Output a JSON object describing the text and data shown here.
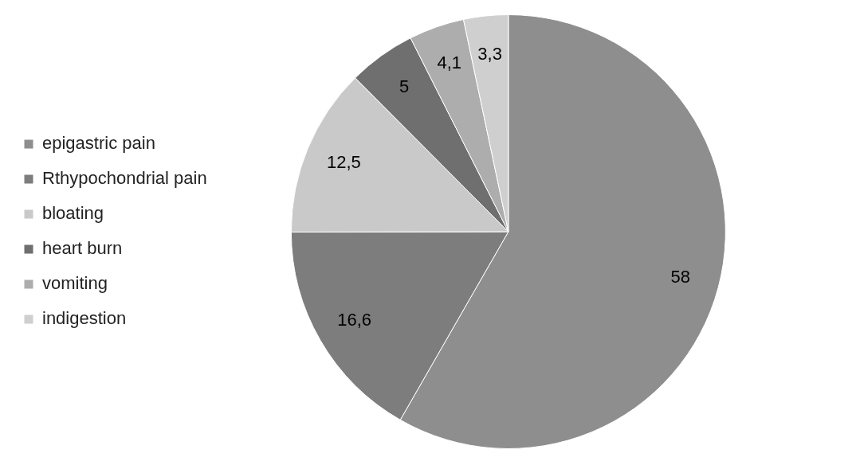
{
  "chart_data": {
    "type": "pie",
    "categories": [
      "epigastric pain",
      "Rthypochondrial pain",
      "bloating",
      "heart burn",
      "vomiting",
      "indigestion"
    ],
    "values": [
      58,
      16.6,
      12.5,
      5,
      4.1,
      3.3
    ],
    "value_labels": [
      "58",
      "16,6",
      "12,5",
      "5",
      "4,1",
      "3,3"
    ],
    "colors": [
      "#8e8e8e",
      "#7d7d7d",
      "#c9c9c9",
      "#6f6f6f",
      "#adadad",
      "#cfcfcf"
    ],
    "legend": "left"
  }
}
